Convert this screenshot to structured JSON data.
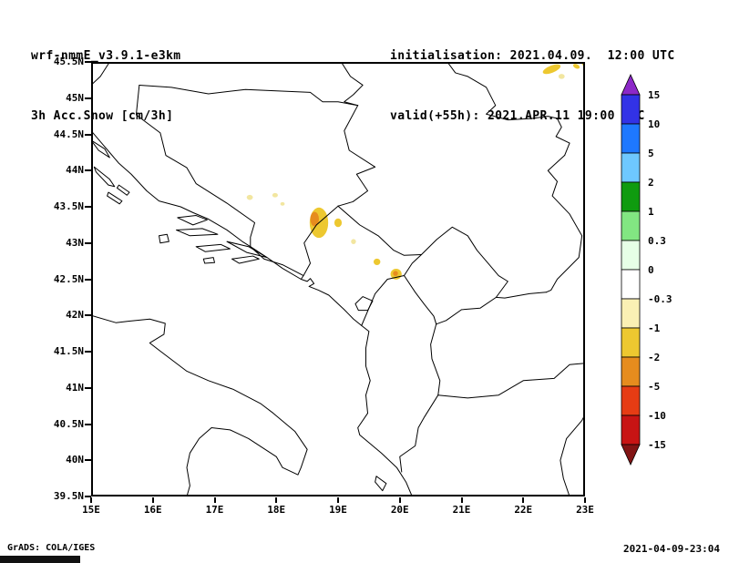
{
  "header": {
    "line1": "wrf-nmmE_v3.9.1-e3km",
    "line2": "3h Acc.Snow [cm/3h]",
    "init_label": "initialisation: 2021.04.09.  12:00 UTC",
    "valid_label": "valid(+55h): 2021.APR.11 19:00 UTC"
  },
  "footer": {
    "credit": "GrADS: COLA/IGES",
    "generated": "2021-04-09-23:04"
  },
  "chart_data": {
    "type": "heatmap",
    "title": "3h Acc.Snow [cm/3h]",
    "model": "wrf-nmmE_v3.9.1-e3km",
    "x_axis": {
      "min": 15,
      "max": 23,
      "tick_values": [
        15,
        16,
        17,
        18,
        19,
        20,
        21,
        22,
        23
      ],
      "tick_labels": [
        "15E",
        "16E",
        "17E",
        "18E",
        "19E",
        "20E",
        "21E",
        "22E",
        "23E"
      ]
    },
    "y_axis": {
      "min": 39.5,
      "max": 45.5,
      "tick_values": [
        45.5,
        45,
        44.5,
        44,
        43.5,
        43,
        42.5,
        42,
        41.5,
        41,
        40.5,
        40,
        39.5
      ],
      "tick_labels": [
        "45.5N",
        "45N",
        "44.5N",
        "44N",
        "43.5N",
        "43N",
        "42.5N",
        "42N",
        "41.5N",
        "41N",
        "40.5N",
        "40N",
        "39.5N"
      ]
    },
    "colorbar": {
      "unit": "cm/3h",
      "tick_labels": [
        "15",
        "10",
        "5",
        "2",
        "1",
        "0.3",
        "0",
        "-0.3",
        "-1",
        "-2",
        "-5",
        "-10",
        "-15"
      ],
      "colors_top_to_bottom": [
        "#8C28C8",
        "#3232E6",
        "#1E78FF",
        "#6EC8FF",
        "#0F9B0F",
        "#82E682",
        "#E6FFE6",
        "#FFFFFF",
        "#FAF0B4",
        "#EDC830",
        "#E68C1E",
        "#E63C14",
        "#C81414",
        "#821414"
      ]
    },
    "snow_patches": [
      {
        "lon": 17.57,
        "lat": 43.63,
        "w": 0.1,
        "h": 0.07,
        "color": "#F2E6A0",
        "level": "-0.3 to -1"
      },
      {
        "lon": 17.98,
        "lat": 43.66,
        "w": 0.09,
        "h": 0.06,
        "color": "#F2E6A0",
        "level": "-0.3 to -1"
      },
      {
        "lon": 18.1,
        "lat": 43.54,
        "w": 0.07,
        "h": 0.05,
        "color": "#F2E6A0",
        "level": "-0.3 to -1"
      },
      {
        "lon": 18.69,
        "lat": 43.28,
        "w": 0.3,
        "h": 0.42,
        "color": "#EDC830",
        "level": "-1 to -2"
      },
      {
        "lon": 18.62,
        "lat": 43.33,
        "w": 0.14,
        "h": 0.2,
        "color": "#E68C1E",
        "level": "-2 to -5"
      },
      {
        "lon": 19.0,
        "lat": 43.28,
        "w": 0.12,
        "h": 0.12,
        "color": "#EDC830",
        "level": "-1 to -2"
      },
      {
        "lon": 19.25,
        "lat": 43.02,
        "w": 0.08,
        "h": 0.07,
        "color": "#F2E6A0",
        "level": "-0.3 to -1"
      },
      {
        "lon": 19.63,
        "lat": 42.74,
        "w": 0.11,
        "h": 0.09,
        "color": "#EDC830",
        "level": "-1 to -2"
      },
      {
        "lon": 19.94,
        "lat": 42.57,
        "w": 0.18,
        "h": 0.15,
        "color": "#EDC830",
        "level": "-1 to -2"
      },
      {
        "lon": 19.93,
        "lat": 42.58,
        "w": 0.08,
        "h": 0.07,
        "color": "#E68C1E",
        "level": "-2 to -5"
      },
      {
        "lon": 22.46,
        "lat": 45.4,
        "w": 0.3,
        "h": 0.1,
        "color": "#EDC830",
        "level": "-1 to -2",
        "rot": -18
      },
      {
        "lon": 22.62,
        "lat": 45.3,
        "w": 0.1,
        "h": 0.07,
        "color": "#F2E6A0",
        "level": "-0.3 to -1"
      },
      {
        "lon": 22.86,
        "lat": 45.44,
        "w": 0.11,
        "h": 0.06,
        "color": "#EDC830",
        "level": "-1 to -2",
        "rot": 20
      },
      {
        "lon": 22.98,
        "lat": 45.47,
        "w": 0.05,
        "h": 0.04,
        "color": "#EDC830",
        "level": "-1 to -2"
      }
    ]
  }
}
